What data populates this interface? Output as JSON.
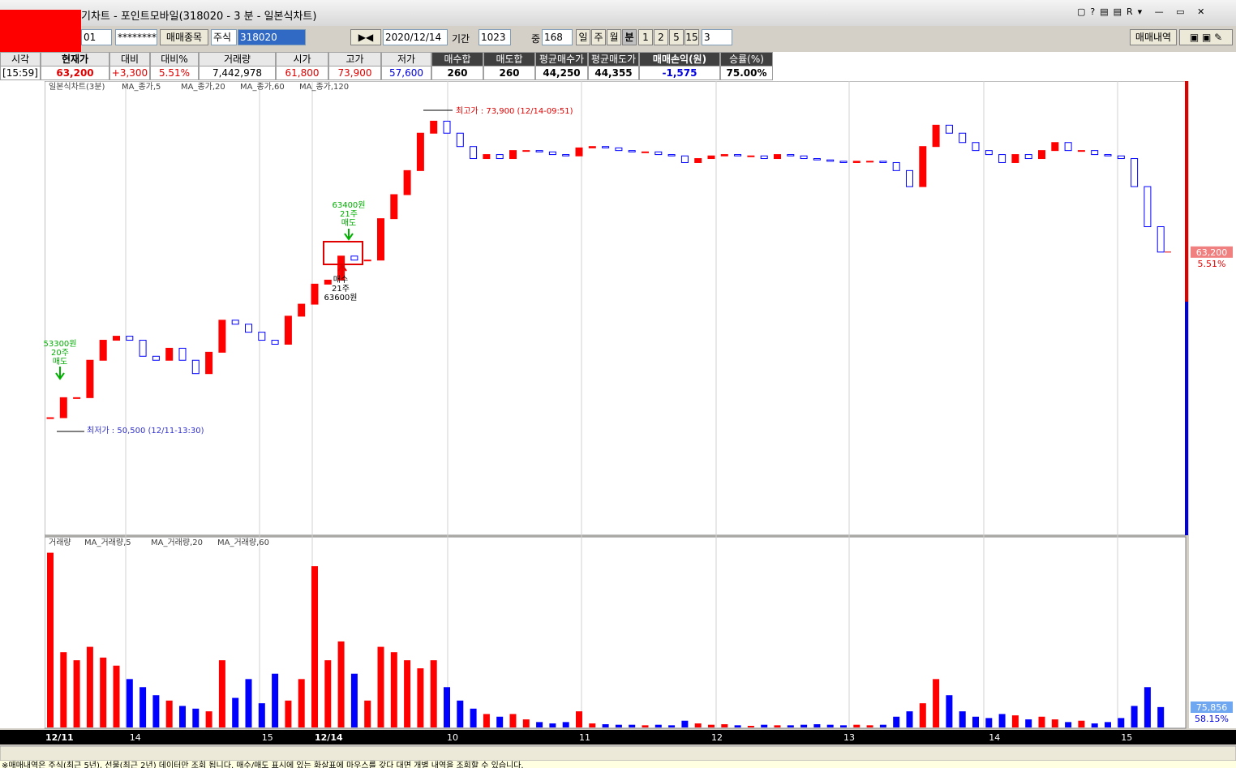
{
  "window": {
    "title": "기차트 - 포인트모바일(318020 - 3 분 - 일본식차트)"
  },
  "toolbar": {
    "account": "01",
    "password": "********",
    "trade_item_button": "매매종목",
    "market": "주식",
    "code": "318020",
    "date": "2020/12/14",
    "period_label": "기간",
    "period": "1023",
    "middle_label": "중",
    "middle": "168",
    "units": [
      "일",
      "주",
      "월",
      "분"
    ],
    "minutes": [
      "1",
      "2",
      "5",
      "15"
    ],
    "minute_value": "3",
    "history_button": "매매내역"
  },
  "quote_table": {
    "headers": [
      "시각",
      "현재가",
      "대비",
      "대비%",
      "거래량",
      "시가",
      "고가",
      "저가",
      "매수합",
      "매도합",
      "평균매수가",
      "평균매도가",
      "매매손익(원)",
      "승률(%)"
    ],
    "values": [
      "[15:59]",
      "63,200",
      "+3,300",
      "5.51%",
      "7,442,978",
      "61,800",
      "73,900",
      "57,600",
      "260",
      "260",
      "44,250",
      "44,355",
      "-1,575",
      "75.00%"
    ]
  },
  "chart_data": [
    {
      "type": "candlestick",
      "title": "일본식차트(3분)",
      "legend": [
        "MA_종가,5",
        "MA_종가,20",
        "MA_종가,60",
        "MA_종가,120"
      ],
      "values": [
        50800,
        52300,
        52300,
        55100,
        56600,
        56900,
        56600,
        55400,
        55100,
        56000,
        55100,
        54100,
        55700,
        58100,
        57800,
        57200,
        56600,
        56300,
        58400,
        59300,
        60800,
        61100,
        62900,
        62600,
        62600,
        65700,
        67500,
        69300,
        72100,
        73000,
        72100,
        71100,
        70200,
        70500,
        70200,
        70800,
        70800,
        70700,
        70500,
        70400,
        71000,
        71100,
        71000,
        70800,
        70700,
        70700,
        70500,
        70400,
        69900,
        70200,
        70400,
        70500,
        70400,
        70400,
        70200,
        70500,
        70400,
        70200,
        70100,
        70000,
        69900,
        70000,
        70000,
        69900,
        69300,
        68100,
        71100,
        72700,
        72100,
        71400,
        70800,
        70500,
        69900,
        70500,
        70200,
        70800,
        71400,
        70800,
        70800,
        70500,
        70400,
        70200,
        68100,
        65100,
        63200
      ],
      "ylim": [
        42000,
        76000
      ],
      "colors": {
        "up": "#ff0000",
        "down": "#0000ff"
      },
      "last_value": 63200,
      "last_value_label": "63,200",
      "change_label": "5.51%",
      "annotations": {
        "high": "최고가 : 73,900 (12/14-09:51)",
        "low": "최저가 : 50,500 (12/11-13:30)",
        "sell1_price": "63400원",
        "sell1_qty": "21주",
        "sell1_side": "매도",
        "buy1_side": "매수",
        "buy1_qty": "21주",
        "buy1_price": "63600원",
        "sell2_price": "53300원",
        "sell2_qty": "20주",
        "sell2_side": "매도"
      }
    },
    {
      "type": "bar",
      "title": "거래량",
      "legend": [
        "MA_거래량,5",
        "MA_거래량,20",
        "MA_거래량,60"
      ],
      "values": [
        650000,
        280000,
        250000,
        300000,
        260000,
        230000,
        180000,
        150000,
        120000,
        100000,
        80000,
        70000,
        60000,
        250000,
        110000,
        180000,
        90000,
        200000,
        100000,
        180000,
        600000,
        250000,
        320000,
        200000,
        100000,
        300000,
        280000,
        250000,
        220000,
        250000,
        150000,
        100000,
        70000,
        50000,
        40000,
        50000,
        30000,
        20000,
        15000,
        20000,
        60000,
        15000,
        12000,
        10000,
        10000,
        8000,
        10000,
        8000,
        25000,
        15000,
        10000,
        12000,
        8000,
        6000,
        10000,
        8000,
        8000,
        10000,
        12000,
        10000,
        8000,
        10000,
        8000,
        10000,
        40000,
        60000,
        90000,
        180000,
        120000,
        60000,
        40000,
        35000,
        50000,
        45000,
        30000,
        40000,
        30000,
        20000,
        25000,
        15000,
        20000,
        35000,
        80000,
        150000,
        75856
      ],
      "ylim": [
        0,
        700000
      ],
      "last_value_label": "75,856",
      "ratio_label": "58.15%",
      "categories": [
        "12/11",
        null,
        null,
        null,
        null,
        null,
        "14",
        null,
        null,
        null,
        null,
        null,
        null,
        null,
        null,
        null,
        "15",
        null,
        null,
        null,
        "12/14",
        null,
        null,
        null,
        null,
        null,
        null,
        null,
        null,
        null,
        "10",
        null,
        null,
        null,
        null,
        null,
        null,
        null,
        null,
        null,
        "11",
        null,
        null,
        null,
        null,
        null,
        null,
        null,
        null,
        null,
        "12",
        null,
        null,
        null,
        null,
        null,
        null,
        null,
        null,
        null,
        "13",
        null,
        null,
        null,
        null,
        null,
        null,
        null,
        null,
        null,
        null,
        "14",
        null,
        null,
        null,
        null,
        null,
        null,
        null,
        null,
        null,
        "15",
        null,
        null,
        null
      ]
    }
  ],
  "status_text": "※매매내역은 주식(최근 5년), 선물(최근 2년) 데이터만 조회 됩니다. 매수/매도 표시에 있는 화살표에 마우스를 갖다 대면 개별 내역을 조회할 수 있습니다."
}
